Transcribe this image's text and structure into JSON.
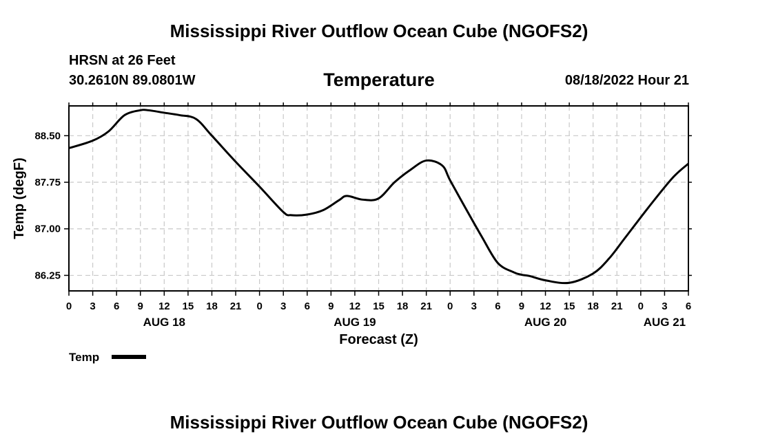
{
  "header": {
    "main_title": "Mississippi River Outflow Ocean Cube (NGOFS2)",
    "station": "HRSN at 26 Feet",
    "coords": "30.2610N  89.0801W",
    "datetime": "08/18/2022 Hour 21"
  },
  "footer": {
    "title": "Mississippi River Outflow Ocean Cube (NGOFS2)"
  },
  "colors": {
    "line": "#000000",
    "grid": "#c8c8c8",
    "background": "#ffffff"
  },
  "chart_data": {
    "type": "line",
    "title": "Temperature",
    "xlabel": "Forecast (Z)",
    "ylabel": "Temp (degF)",
    "x_unit": "forecast hours from AUG 18 00Z",
    "xlim": [
      0,
      78
    ],
    "ylim": [
      86.0,
      88.98
    ],
    "grid": true,
    "x_ticks": [
      0,
      3,
      6,
      9,
      12,
      15,
      18,
      21,
      24,
      27,
      30,
      33,
      36,
      39,
      42,
      45,
      48,
      51,
      54,
      57,
      60,
      63,
      66,
      69,
      72,
      75,
      78
    ],
    "x_tick_labels": [
      "0",
      "3",
      "6",
      "9",
      "12",
      "15",
      "18",
      "21",
      "0",
      "3",
      "6",
      "9",
      "12",
      "15",
      "18",
      "21",
      "0",
      "3",
      "6",
      "9",
      "12",
      "15",
      "18",
      "21",
      "0",
      "3",
      "6"
    ],
    "y_ticks": [
      86.25,
      87.0,
      87.75,
      88.5
    ],
    "y_tick_labels": [
      "86.25",
      "87.00",
      "87.75",
      "88.50"
    ],
    "day_labels": [
      {
        "x": 12,
        "label": "AUG 18"
      },
      {
        "x": 36,
        "label": "AUG 19"
      },
      {
        "x": 60,
        "label": "AUG 20"
      },
      {
        "x": 75,
        "label": "AUG 21"
      }
    ],
    "legend": [
      {
        "name": "Temp",
        "placement": "bottom-left"
      }
    ],
    "series": [
      {
        "name": "Temp",
        "x": [
          0,
          3,
          5,
          7,
          9,
          10,
          12,
          14,
          16,
          18,
          21,
          24,
          27,
          28,
          30,
          32,
          34,
          35,
          37,
          39,
          41,
          43,
          45,
          47,
          48,
          50,
          52,
          54,
          56,
          57,
          58,
          60,
          63,
          66,
          68,
          70,
          73,
          76,
          78
        ],
        "y": [
          88.3,
          88.42,
          88.57,
          88.83,
          88.91,
          88.91,
          88.87,
          88.83,
          88.77,
          88.5,
          88.08,
          87.68,
          87.27,
          87.22,
          87.23,
          87.3,
          87.46,
          87.53,
          87.47,
          87.49,
          87.75,
          87.95,
          88.1,
          88.02,
          87.78,
          87.32,
          86.87,
          86.45,
          86.3,
          86.26,
          86.24,
          86.17,
          86.13,
          86.28,
          86.52,
          86.85,
          87.35,
          87.82,
          88.05
        ]
      }
    ]
  }
}
